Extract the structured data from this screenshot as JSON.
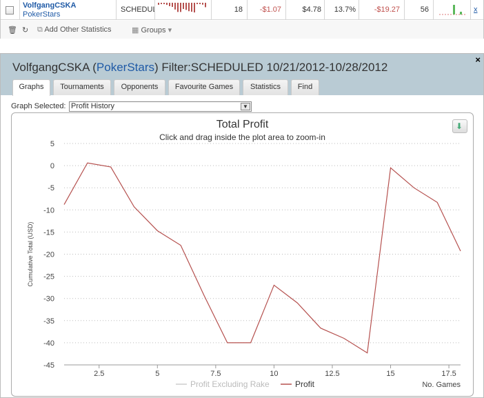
{
  "summary_row": {
    "player": "VolfgangCSKA",
    "site": "PokerStars",
    "filter": "SCHEDULI",
    "games": "18",
    "profit": "-$1.07",
    "stakes": "$4.78",
    "roi": "13.7%",
    "profit2": "-$19.27",
    "count": "56",
    "remove": "x"
  },
  "toolbar": {
    "add_stats": "Add Other Statistics",
    "groups": "Groups"
  },
  "panel": {
    "player": "VolfgangCSKA",
    "site": "PokerStars",
    "filter_text": "Filter:SCHEDULED 10/21/2012-10/28/2012",
    "close": "×",
    "tabs": [
      "Graphs",
      "Tournaments",
      "Opponents",
      "Favourite Games",
      "Statistics",
      "Find"
    ],
    "graph_selected_label": "Graph Selected:",
    "graph_selected_value": "Profit History"
  },
  "chart_data": {
    "type": "line",
    "title": "Total Profit",
    "subtitle": "Click and drag inside the plot area to zoom-in",
    "ylabel": "Cumulative Total (USD)",
    "xlabel": "No. Games",
    "ylim": [
      -45,
      5
    ],
    "xlim": [
      1,
      18
    ],
    "yticks": [
      5,
      0,
      -5,
      -10,
      -15,
      -20,
      -25,
      -30,
      -35,
      -40,
      -45
    ],
    "xticks": [
      2.5,
      5,
      7.5,
      10,
      12.5,
      15,
      17.5
    ],
    "xtick_labels": [
      "2.5",
      "5",
      "7.5",
      "10",
      "12.5",
      "15",
      "17.5"
    ],
    "grid": true,
    "legend_position": "bottom-center",
    "series": [
      {
        "name": "Profit Excluding Rake",
        "color": "#cccccc",
        "x": [],
        "values": []
      },
      {
        "name": "Profit",
        "color": "#b5504e",
        "x": [
          1,
          2,
          3,
          4,
          5,
          6,
          7,
          8,
          9,
          10,
          11,
          12,
          13,
          14,
          15,
          16,
          17,
          18
        ],
        "values": [
          -8.8,
          0.6,
          -0.3,
          -9.3,
          -14.7,
          -18.0,
          -29.3,
          -40.0,
          -40.0,
          -27.0,
          -31.0,
          -36.7,
          -39.0,
          -42.3,
          -0.5,
          -5.0,
          -8.3,
          -19.3
        ]
      }
    ]
  }
}
